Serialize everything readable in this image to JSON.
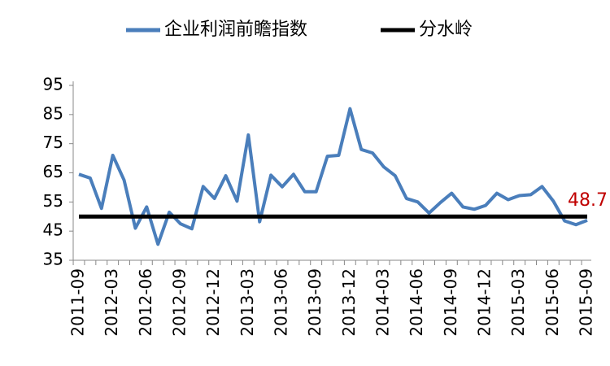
{
  "chart_data": {
    "type": "line",
    "categories": [
      "2011-09",
      null,
      null,
      "2012-03",
      null,
      null,
      "2012-06",
      null,
      null,
      "2012-09",
      null,
      null,
      "2012-12",
      null,
      null,
      "2013-03",
      null,
      null,
      "2013-06",
      null,
      null,
      "2013-09",
      null,
      null,
      "2013-12",
      null,
      null,
      "2014-03",
      null,
      null,
      "2014-06",
      null,
      null,
      "2014-09",
      null,
      null,
      "2014-12",
      null,
      null,
      "2015-03",
      null,
      null,
      "2015-06",
      null,
      null,
      "2015-09"
    ],
    "series": [
      {
        "name": "企业利润前瞻指数",
        "color": "#4a7ebb",
        "values": [
          64.5,
          63.2,
          52.8,
          71,
          62.5,
          46,
          53.3,
          40.5,
          51.5,
          47.5,
          45.8,
          60.3,
          56.2,
          64,
          55.3,
          78,
          48.2,
          64.2,
          60.2,
          64.5,
          58.5,
          58.5,
          70.7,
          71,
          87,
          73,
          71.8,
          67,
          64,
          56.2,
          55,
          51.2,
          54.8,
          58,
          53.3,
          52.5,
          53.8,
          58,
          55.8,
          57.2,
          57.5,
          60.3,
          55.3,
          48.5,
          47.2,
          48.7
        ],
        "value_labels": [
          null,
          null,
          null,
          null,
          null,
          null,
          null,
          null,
          null,
          null,
          null,
          null,
          null,
          null,
          null,
          null,
          null,
          null,
          null,
          null,
          null,
          null,
          null,
          null,
          null,
          null,
          null,
          null,
          null,
          null,
          null,
          null,
          null,
          null,
          null,
          null,
          null,
          null,
          null,
          null,
          null,
          null,
          null,
          null,
          null,
          "48.7"
        ],
        "label_color": "#c00000"
      },
      {
        "name": "分水岭",
        "color": "#000000",
        "values": [
          50,
          50,
          50,
          50,
          50,
          50,
          50,
          50,
          50,
          50,
          50,
          50,
          50,
          50,
          50,
          50,
          50,
          50,
          50,
          50,
          50,
          50,
          50,
          50,
          50,
          50,
          50,
          50,
          50,
          50,
          50,
          50,
          50,
          50,
          50,
          50,
          50,
          50,
          50,
          50,
          50,
          50,
          50,
          50,
          50,
          50
        ]
      }
    ],
    "ylim": [
      35,
      95
    ],
    "yticks": [
      35,
      45,
      55,
      65,
      75,
      85,
      95
    ],
    "legend": "top"
  }
}
